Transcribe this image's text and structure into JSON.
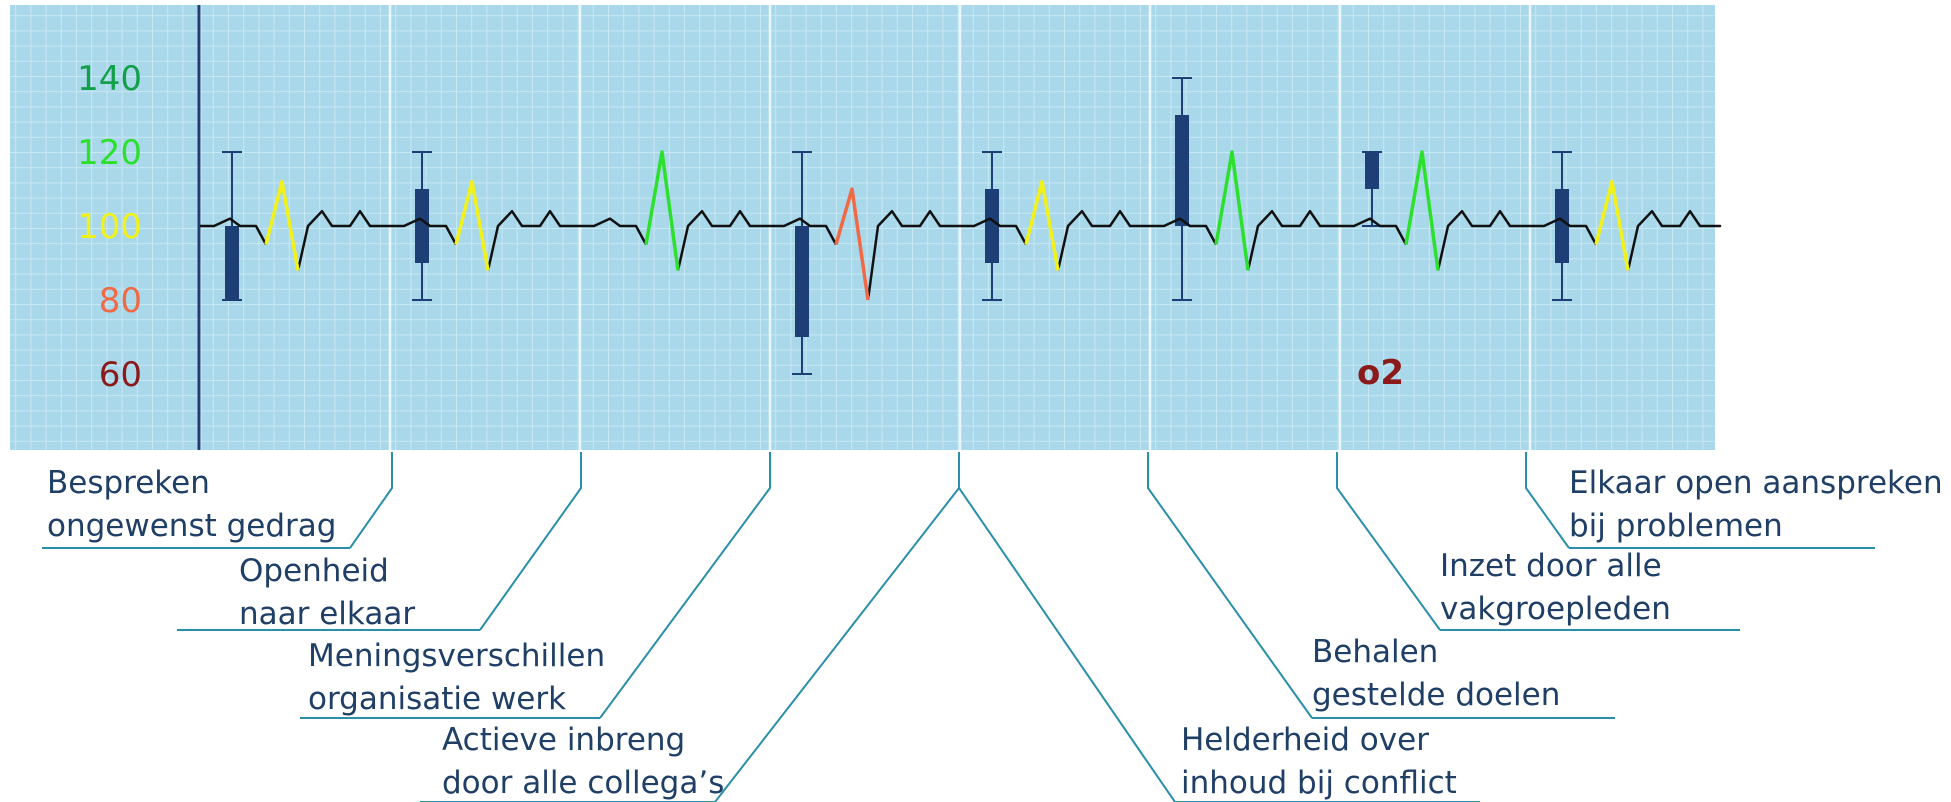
{
  "chart_data": {
    "type": "line",
    "title": "",
    "xlabel": "",
    "ylabel": "",
    "ylim": [
      50,
      170
    ],
    "y_ticks": [
      {
        "value": 140,
        "label": "140",
        "color": "#14a04a"
      },
      {
        "value": 120,
        "label": "120",
        "color": "#2ee02e"
      },
      {
        "value": 100,
        "label": "100",
        "color": "#f2f21a"
      },
      {
        "value": 80,
        "label": "80",
        "color": "#f06a45"
      },
      {
        "value": 60,
        "label": "60",
        "color": "#8b1a1a"
      }
    ],
    "annotation": {
      "text": "o2",
      "color": "#8b1a1a"
    },
    "grid": true,
    "background_color": "#a9d8ea",
    "line_color": "#111111",
    "box_color": "#1e3f75",
    "categories": [
      {
        "label": [
          "Bespreken",
          "ongewenst gedrag"
        ],
        "whisker_low": 80,
        "whisker_high": 120,
        "box_low": 80,
        "box_high": 100,
        "spike_peak": 112,
        "spike_trough": 88,
        "spike_color": "#f2f21a"
      },
      {
        "label": [
          "Openheid",
          "naar elkaar"
        ],
        "whisker_low": 80,
        "whisker_high": 120,
        "box_low": 90,
        "box_high": 110,
        "spike_peak": 112,
        "spike_trough": 88,
        "spike_color": "#f2f21a"
      },
      {
        "label": [
          "Meningsverschillen",
          "organisatie werk"
        ],
        "whisker_low": null,
        "whisker_high": null,
        "box_low": null,
        "box_high": null,
        "spike_peak": 120,
        "spike_trough": 88,
        "spike_color": "#2ee02e"
      },
      {
        "label": [
          "Actieve inbreng",
          "door alle collega’s"
        ],
        "whisker_low": 60,
        "whisker_high": 120,
        "box_low": 70,
        "box_high": 100,
        "spike_peak": 110,
        "spike_trough": 80,
        "spike_color": "#f06a45"
      },
      {
        "label": [
          "Helderheid over",
          "inhoud bij conflict"
        ],
        "whisker_low": 80,
        "whisker_high": 120,
        "box_low": 90,
        "box_high": 110,
        "spike_peak": 112,
        "spike_trough": 88,
        "spike_color": "#f2f21a"
      },
      {
        "label": [
          "Behalen",
          "gestelde doelen"
        ],
        "whisker_low": 80,
        "whisker_high": 140,
        "box_low": 100,
        "box_high": 130,
        "spike_peak": 120,
        "spike_trough": 88,
        "spike_color": "#2ee02e"
      },
      {
        "label": [
          "Inzet door alle",
          "vakgroepleden"
        ],
        "whisker_low": 100,
        "whisker_high": 120,
        "box_low": 110,
        "box_high": 120,
        "spike_peak": 120,
        "spike_trough": 88,
        "spike_color": "#2ee02e"
      },
      {
        "label": [
          "Elkaar open aanspreken",
          "bij problemen"
        ],
        "whisker_low": 80,
        "whisker_high": 120,
        "box_low": 90,
        "box_high": 110,
        "spike_peak": 112,
        "spike_trough": 88,
        "spike_color": "#f2f21a"
      }
    ]
  }
}
